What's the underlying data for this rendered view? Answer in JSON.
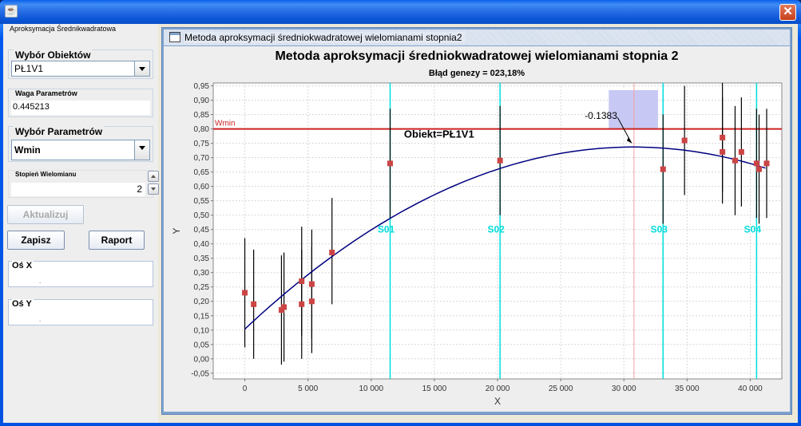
{
  "window": {
    "close_label": "✕",
    "app_icon": "java-icon"
  },
  "left_panel": {
    "title": "Aproksymacja Średnikwadratowa",
    "objects_group": {
      "label": "Wybór Obiektów",
      "selected": "PŁ1V1"
    },
    "weight_group": {
      "label": "Waga Parametrów",
      "value": "0.445213"
    },
    "param_group": {
      "label": "Wybór Parametrów",
      "selected": "Wmin"
    },
    "degree_group": {
      "label": "Stopień Wielomianu",
      "value": "2"
    },
    "update_button": "Aktualizuj",
    "save_button": "Zapisz",
    "report_button": "Raport",
    "axis_x": {
      "label": "Oś X",
      "value": "."
    },
    "axis_y": {
      "label": "Oś Y",
      "value": "."
    }
  },
  "internal_frame": {
    "title": "Metoda aproksymacji średniokwadratowej wielomianami stopnia2"
  },
  "chart_data": {
    "type": "scatter",
    "title": "Metoda aproksymacji średniokwadratowej wielomianami stopnia 2",
    "subtitle": "Błąd genezy = 023,18%",
    "xlabel": "X",
    "ylabel": "Y",
    "xlim": [
      -2500,
      42500
    ],
    "ylim": [
      -0.07,
      0.96
    ],
    "xticks": [
      0,
      5000,
      10000,
      15000,
      20000,
      25000,
      30000,
      35000,
      40000
    ],
    "xtick_labels": [
      "0",
      "5 000",
      "10 000",
      "15 000",
      "20 000",
      "25 000",
      "30 000",
      "35 000",
      "40 000"
    ],
    "yticks": [
      -0.05,
      0,
      0.05,
      0.1,
      0.15,
      0.2,
      0.25,
      0.3,
      0.35,
      0.4,
      0.45,
      0.5,
      0.55,
      0.6,
      0.65,
      0.7,
      0.75,
      0.8,
      0.85,
      0.9,
      0.95
    ],
    "ytick_labels": [
      "-0,05",
      "0,00",
      "0,05",
      "0,10",
      "0,15",
      "0,20",
      "0,25",
      "0,30",
      "0,35",
      "0,40",
      "0,45",
      "0,50",
      "0,55",
      "0,60",
      "0,65",
      "0,70",
      "0,75",
      "0,80",
      "0,85",
      "0,90",
      "0,95"
    ],
    "grid": true,
    "colors": {
      "points": "#cc4444",
      "curve": "#000080",
      "threshold": "#cc2222",
      "markers": "#00dddd",
      "highlight": "#c8c8f4"
    },
    "threshold": {
      "label": "Wmin",
      "y": 0.8
    },
    "vertical_markers": [
      {
        "label": "S01",
        "x": 11500
      },
      {
        "label": "S02",
        "x": 20200
      },
      {
        "label": "S03",
        "x": 33100
      },
      {
        "label": "S04",
        "x": 40500
      }
    ],
    "curve": {
      "type": "quadratic",
      "coeffs": [
        0.1036,
        4.12e-05,
        -6.7e-10
      ],
      "x_range": [
        0,
        41200
      ]
    },
    "object_label": "Obiekt=PŁ1V1",
    "annotation": {
      "text": "-0.1383",
      "x": 30800
    },
    "highlight_region": {
      "x": [
        28800,
        32700
      ],
      "y": [
        0.8,
        0.935
      ]
    },
    "points": [
      {
        "x": 0,
        "y": 0.23,
        "lo": 0.04,
        "hi": 0.42
      },
      {
        "x": 700,
        "y": 0.19,
        "lo": 0.0,
        "hi": 0.38
      },
      {
        "x": 2900,
        "y": 0.17,
        "lo": -0.02,
        "hi": 0.36
      },
      {
        "x": 3100,
        "y": 0.18,
        "lo": -0.01,
        "hi": 0.37
      },
      {
        "x": 4500,
        "y": 0.27,
        "lo": 0.08,
        "hi": 0.46
      },
      {
        "x": 4500,
        "y": 0.19,
        "lo": 0.0,
        "hi": 0.38
      },
      {
        "x": 5300,
        "y": 0.26,
        "lo": 0.07,
        "hi": 0.45
      },
      {
        "x": 5300,
        "y": 0.2,
        "lo": 0.02,
        "hi": 0.39
      },
      {
        "x": 6900,
        "y": 0.37,
        "lo": 0.19,
        "hi": 0.56
      },
      {
        "x": 11500,
        "y": 0.68,
        "lo": 0.49,
        "hi": 0.87
      },
      {
        "x": 20200,
        "y": 0.69,
        "lo": 0.5,
        "hi": 0.88
      },
      {
        "x": 33100,
        "y": 0.66,
        "lo": 0.47,
        "hi": 0.85
      },
      {
        "x": 34800,
        "y": 0.76,
        "lo": 0.57,
        "hi": 0.95
      },
      {
        "x": 37800,
        "y": 0.77,
        "lo": 0.58,
        "hi": 0.96
      },
      {
        "x": 37800,
        "y": 0.72,
        "lo": 0.54,
        "hi": 0.91
      },
      {
        "x": 38800,
        "y": 0.69,
        "lo": 0.5,
        "hi": 0.88
      },
      {
        "x": 39300,
        "y": 0.72,
        "lo": 0.53,
        "hi": 0.91
      },
      {
        "x": 40500,
        "y": 0.68,
        "lo": 0.49,
        "hi": 0.87
      },
      {
        "x": 40700,
        "y": 0.66,
        "lo": 0.47,
        "hi": 0.85
      },
      {
        "x": 41300,
        "y": 0.68,
        "lo": 0.49,
        "hi": 0.87
      }
    ]
  }
}
